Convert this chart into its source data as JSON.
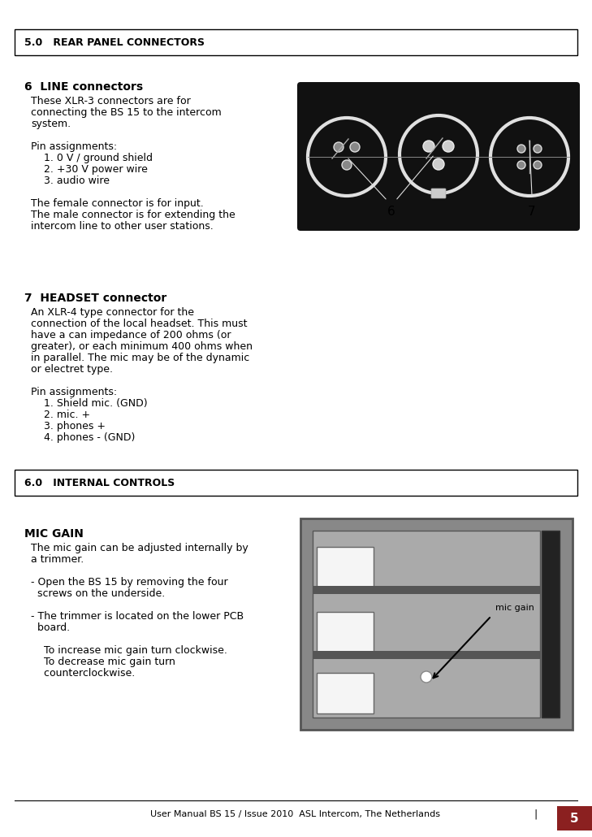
{
  "bg_color": "#ffffff",
  "border_color": "#000000",
  "section_header_bg": "#ffffff",
  "footer_bar_color": "#8B2020",
  "page_number": "5",
  "footer_text": "User Manual BS 15 / Issue 2010  ASL Intercom, The Netherlands",
  "section1_header": "5.0   REAR PANEL CONNECTORS",
  "section2_header": "6.0   INTERNAL CONTROLS",
  "connector_heading": "6  LINE connectors",
  "connector_body": [
    "These XLR-3 connectors are for",
    "connecting the BS 15 to the intercom",
    "system.",
    "",
    "Pin assignments:",
    "    1. 0 V / ground shield",
    "    2. +30 V power wire",
    "    3. audio wire",
    "",
    "The female connector is for input.",
    "The male connector is for extending the",
    "intercom line to other user stations."
  ],
  "headset_heading": "7  HEADSET connector",
  "headset_body": [
    "An XLR-4 type connector for the",
    "connection of the local headset. This must",
    "have a can impedance of 200 ohms (or",
    "greater), or each minimum 400 ohms when",
    "in parallel. The mic may be of the dynamic",
    "or electret type.",
    "",
    "Pin assignments:",
    "    1. Shield mic. (GND)",
    "    2. mic. +",
    "    3. phones +",
    "    4. phones - (GND)"
  ],
  "mic_heading": "MIC GAIN",
  "mic_body": [
    "The mic gain can be adjusted internally by",
    "a trimmer.",
    "",
    "- Open the BS 15 by removing the four",
    "  screws on the underside.",
    "",
    "- The trimmer is located on the lower PCB",
    "  board.",
    "",
    "    To increase mic gain turn clockwise.",
    "    To decrease mic gain turn",
    "    counterclockwise."
  ]
}
